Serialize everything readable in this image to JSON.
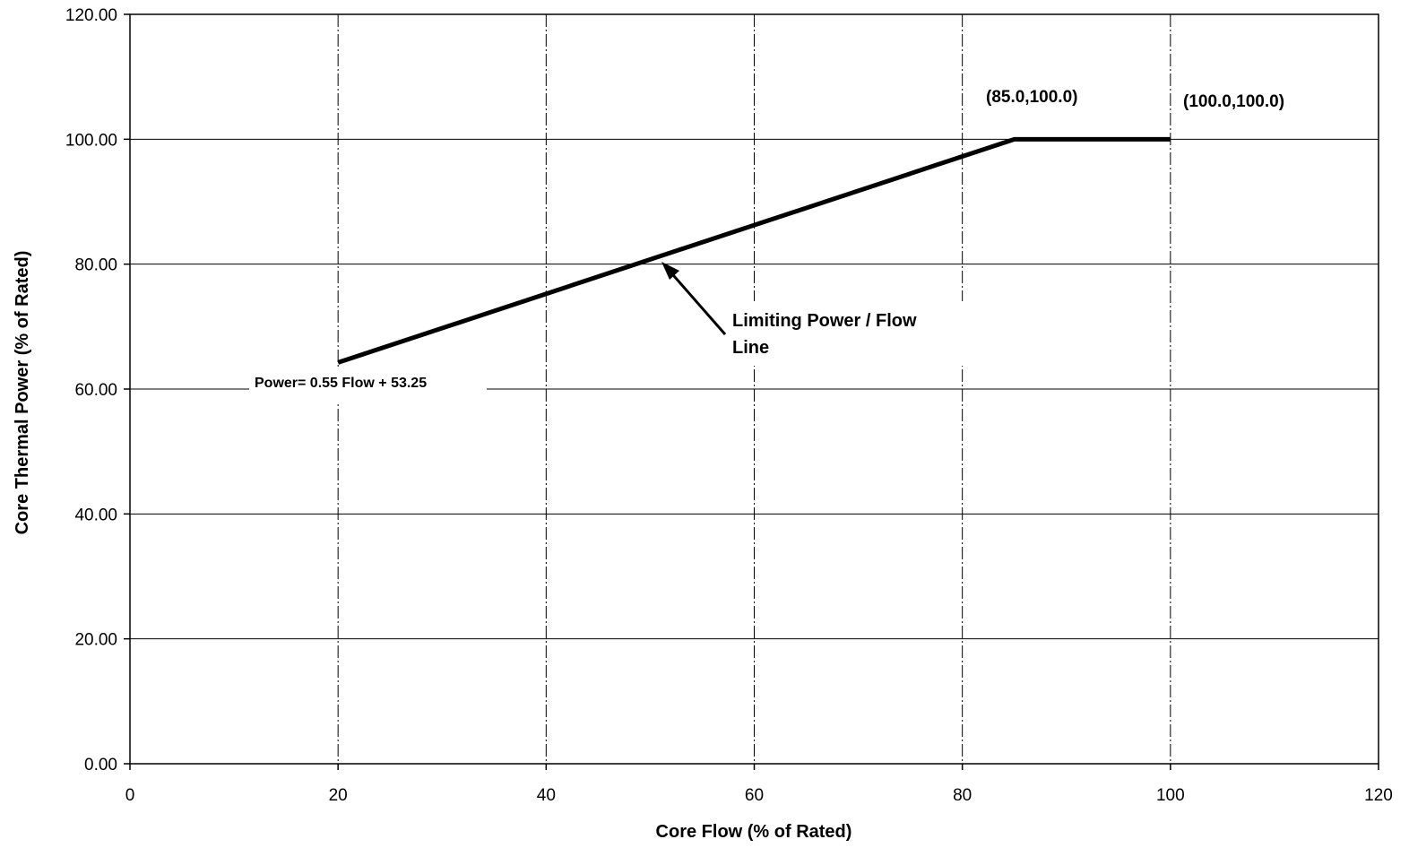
{
  "chart_data": {
    "type": "line",
    "xlabel": "Core Flow (% of Rated)",
    "ylabel": "Core Thermal Power (% of Rated)",
    "xlim": [
      0,
      120
    ],
    "ylim": [
      0,
      120
    ],
    "x_ticks": [
      "0",
      "20",
      "40",
      "60",
      "80",
      "100",
      "120"
    ],
    "y_ticks": [
      "0.00",
      "20.00",
      "40.00",
      "60.00",
      "80.00",
      "100.00",
      "120.00"
    ],
    "grid": true,
    "series": [
      {
        "x": [
          20,
          85,
          100
        ],
        "y": [
          64.25,
          100,
          100
        ]
      }
    ],
    "annotations": {
      "point_85": "(85.0,100.0)",
      "point_100": "(100.0,100.0)",
      "line_label_1": "Limiting Power / Flow",
      "line_label_2": "Line",
      "equation": "Power= 0.55 Flow + 53.25"
    },
    "colors": {
      "line": "#000000",
      "grid": "#000000"
    }
  }
}
